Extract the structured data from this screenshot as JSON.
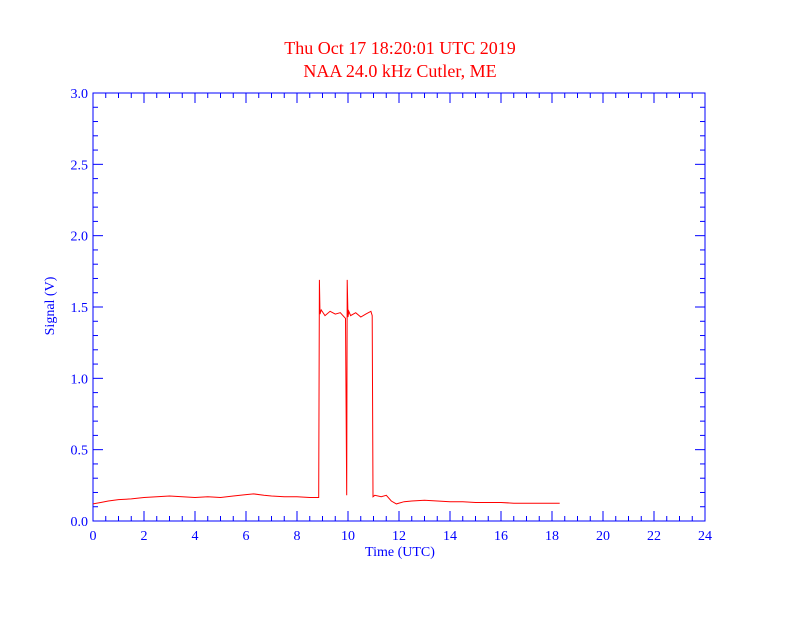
{
  "chart_data": {
    "type": "line",
    "title": "Thu Oct 17 18:20:01 UTC 2019",
    "subtitle": "NAA 24.0 kHz Cutler, ME",
    "xlabel": "Time (UTC)",
    "ylabel": "Signal (V)",
    "xlim": [
      0,
      24
    ],
    "ylim": [
      0,
      3.0
    ],
    "x_ticks": [
      0,
      2,
      4,
      6,
      8,
      10,
      12,
      14,
      16,
      18,
      20,
      22,
      24
    ],
    "x_tick_labels": [
      "0",
      "2",
      "4",
      "6",
      "8",
      "10",
      "12",
      "14",
      "16",
      "18",
      "20",
      "22",
      "24"
    ],
    "y_ticks": [
      0,
      0.5,
      1.0,
      1.5,
      2.0,
      2.5,
      3.0
    ],
    "y_tick_labels": [
      "0.0",
      "0.5",
      "1.0",
      "1.5",
      "2.0",
      "2.5",
      "3.0"
    ],
    "grid": false,
    "colors": {
      "title": "#ff0000",
      "axes": "#0000ff",
      "series": "#ff0000"
    },
    "series": [
      {
        "x": [
          0.0,
          0.3,
          0.6,
          1.0,
          1.5,
          2.0,
          2.5,
          3.0,
          3.5,
          4.0,
          4.5,
          5.0,
          5.5,
          6.0,
          6.3,
          6.7,
          7.0,
          7.5,
          8.0,
          8.5,
          8.85,
          8.88,
          8.9,
          8.95,
          9.1,
          9.3,
          9.5,
          9.7,
          9.9,
          9.95,
          9.97,
          10.0,
          10.03,
          10.1,
          10.3,
          10.5,
          10.7,
          10.9,
          10.95,
          10.98,
          11.05,
          11.3,
          11.5,
          11.7,
          11.9,
          12.2,
          12.5,
          13.0,
          13.5,
          14.0,
          14.5,
          15.0,
          15.5,
          16.0,
          16.5,
          17.0,
          17.5,
          18.0,
          18.3
        ],
        "y": [
          0.12,
          0.13,
          0.14,
          0.15,
          0.155,
          0.165,
          0.17,
          0.175,
          0.17,
          0.165,
          0.17,
          0.165,
          0.175,
          0.185,
          0.19,
          0.18,
          0.175,
          0.17,
          0.17,
          0.165,
          0.165,
          1.69,
          1.45,
          1.48,
          1.44,
          1.47,
          1.45,
          1.46,
          1.42,
          0.18,
          1.69,
          1.43,
          1.47,
          1.44,
          1.46,
          1.43,
          1.45,
          1.47,
          1.44,
          0.17,
          0.18,
          0.17,
          0.18,
          0.14,
          0.12,
          0.135,
          0.14,
          0.145,
          0.14,
          0.135,
          0.135,
          0.13,
          0.13,
          0.13,
          0.125,
          0.125,
          0.125,
          0.125,
          0.125
        ]
      }
    ]
  }
}
